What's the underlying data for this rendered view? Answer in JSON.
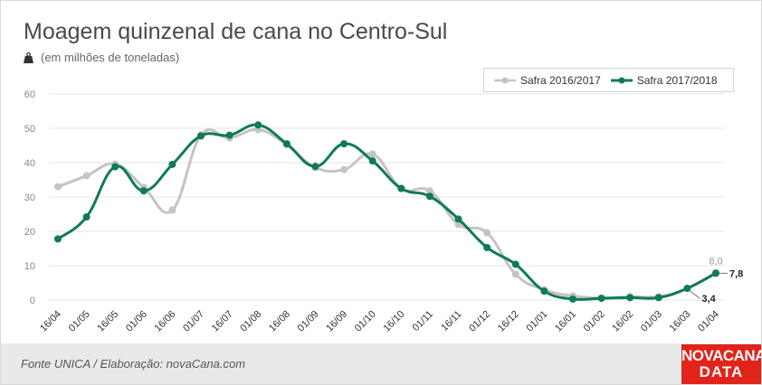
{
  "header": {
    "title": "Moagem quinzenal de cana no Centro-Sul",
    "subtitle": "(em milhões de toneladas)",
    "subtitle_icon": "weight-icon"
  },
  "legend": {
    "items": [
      {
        "label": "Safra 2016/2017",
        "color": "#c4c4c4"
      },
      {
        "label": "Safra 2017/2018",
        "color": "#0f7a5a"
      }
    ]
  },
  "footer": {
    "source": "Fonte UNICA / Elaboração: novaCana.com"
  },
  "logo": {
    "line1": "NOVACANA",
    "line2": "DATA"
  },
  "chart_data": {
    "type": "line",
    "categories": [
      "16/04",
      "01/05",
      "16/05",
      "01/06",
      "16/06",
      "01/07",
      "16/07",
      "01/08",
      "16/08",
      "01/09",
      "16/09",
      "01/10",
      "16/10",
      "01/11",
      "16/11",
      "01/12",
      "16/12",
      "01/01",
      "16/01",
      "01/02",
      "16/02",
      "01/03",
      "16/03",
      "01/04"
    ],
    "ylim": [
      0,
      60
    ],
    "yticks": [
      0,
      10,
      20,
      30,
      40,
      50,
      60
    ],
    "grid": true,
    "legend_position": "top-right",
    "series": [
      {
        "name": "Safra 2016/2017",
        "color": "#c4c4c4",
        "values": [
          33.0,
          36.2,
          39.6,
          32.8,
          26.2,
          48.0,
          47.2,
          49.6,
          45.2,
          38.6,
          38.0,
          42.5,
          32.5,
          31.8,
          22.0,
          19.6,
          7.5,
          3.0,
          1.2,
          0.6,
          1.0,
          1.0,
          3.4,
          8.0
        ]
      },
      {
        "name": "Safra 2017/2018",
        "color": "#0f7a5a",
        "values": [
          17.8,
          24.2,
          38.8,
          31.8,
          39.5,
          47.8,
          48.0,
          51.0,
          45.5,
          38.9,
          45.5,
          40.5,
          32.5,
          30.2,
          23.6,
          15.3,
          10.4,
          2.6,
          0.3,
          0.5,
          0.7,
          0.7,
          3.4,
          7.8
        ]
      }
    ],
    "annotations": [
      {
        "label": "8,0",
        "series": "Safra 2016/2017",
        "index": 23
      },
      {
        "label": "7,8",
        "series": "Safra 2017/2018",
        "index": 23
      },
      {
        "label": "3,4",
        "series": "Safra 2016/2017",
        "index": 22
      }
    ]
  }
}
